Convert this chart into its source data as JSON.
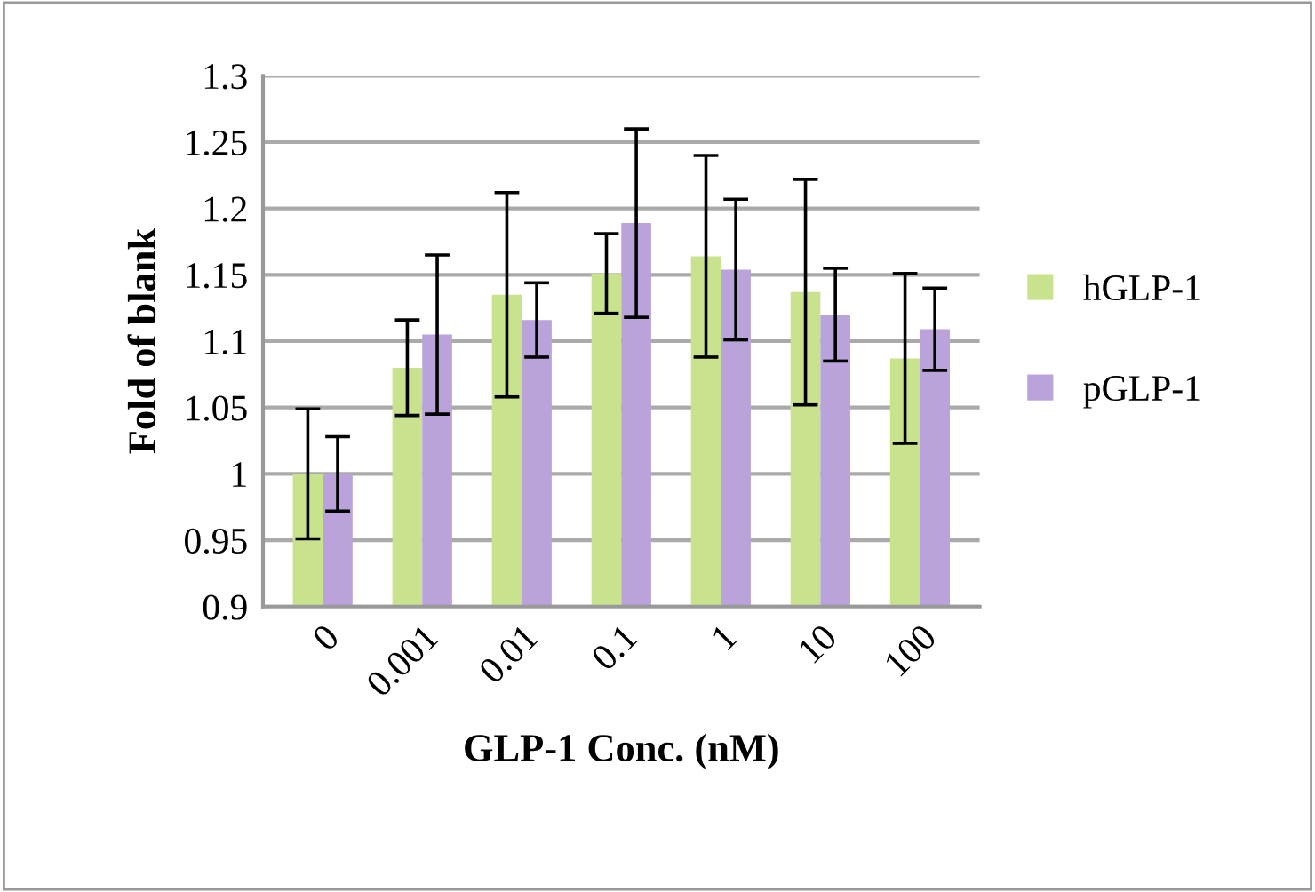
{
  "chart_data": {
    "type": "bar",
    "xlabel": "GLP-1 Conc. (nM)",
    "ylabel": "Fold of blank",
    "categories": [
      "0",
      "0.001",
      "0.01",
      "0.1",
      "1",
      "10",
      "100"
    ],
    "series": [
      {
        "name": "hGLP-1",
        "color": "#c8e28e",
        "values": [
          1.0,
          1.08,
          1.135,
          1.151,
          1.164,
          1.137,
          1.087
        ],
        "errors": [
          0.049,
          0.036,
          0.077,
          0.03,
          0.076,
          0.085,
          0.064
        ]
      },
      {
        "name": "pGLP-1",
        "color": "#b9a3da",
        "values": [
          1.0,
          1.105,
          1.116,
          1.189,
          1.154,
          1.12,
          1.109
        ],
        "errors": [
          0.028,
          0.06,
          0.028,
          0.071,
          0.053,
          0.035,
          0.031
        ]
      }
    ],
    "ylim": [
      0.9,
      1.3
    ],
    "yticks": [
      0.9,
      0.95,
      1,
      1.05,
      1.1,
      1.15,
      1.2,
      1.25,
      1.3
    ],
    "grid": "y",
    "legend": "right"
  }
}
